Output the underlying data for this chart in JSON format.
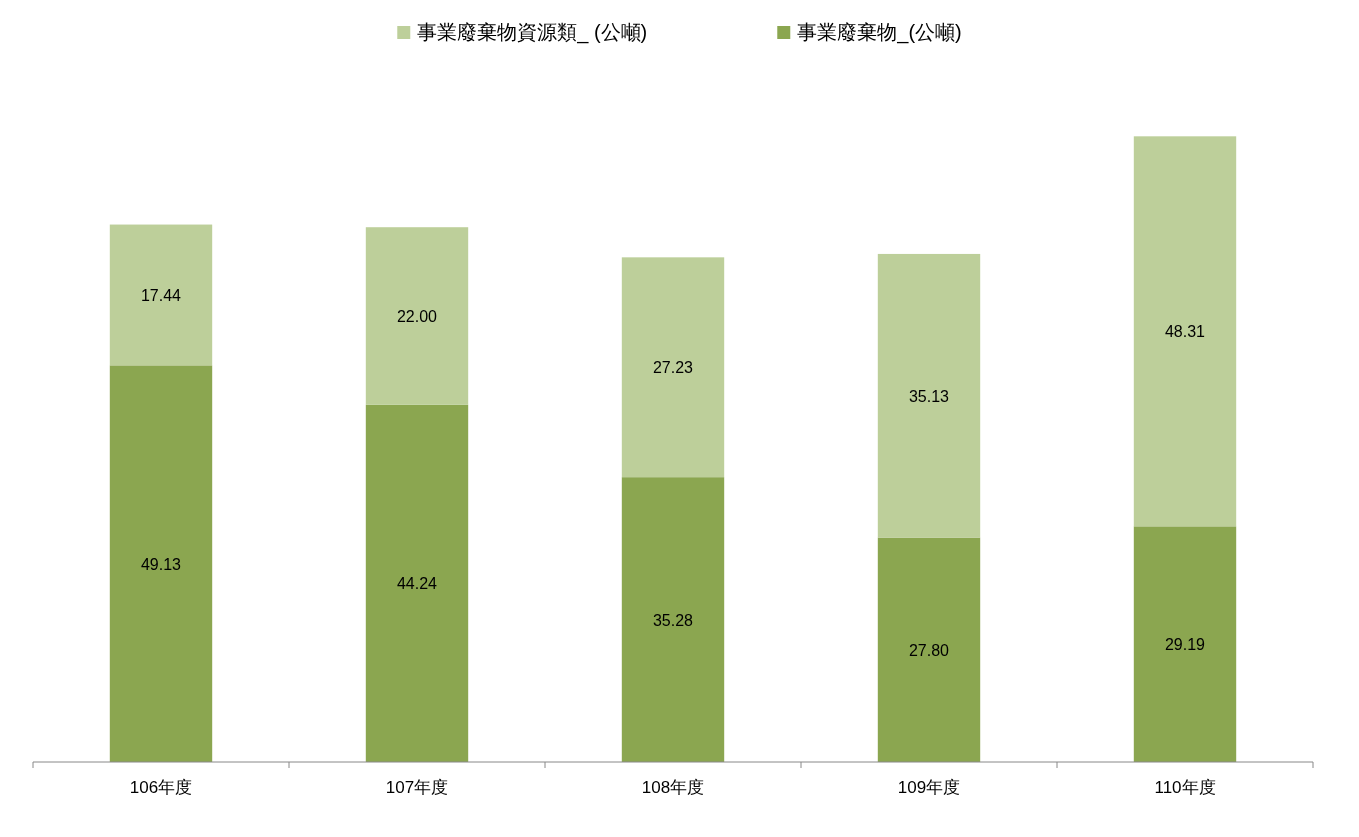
{
  "chart_data": {
    "type": "bar",
    "stacked": true,
    "legend": "top",
    "categories": [
      "106年度",
      "107年度",
      "108年度",
      "109年度",
      "110年度"
    ],
    "series": [
      {
        "name": "事業廢棄物_(公噸)",
        "color": "#8ba650",
        "values": [
          49.13,
          44.24,
          35.28,
          27.8,
          29.19
        ],
        "value_labels": [
          "49.13",
          "44.24",
          "35.28",
          "27.80",
          "29.19"
        ]
      },
      {
        "name": "事業廢棄物資源類_ (公噸)",
        "color": "#bdcf9a",
        "values": [
          17.44,
          22.0,
          27.23,
          35.13,
          48.31
        ],
        "value_labels": [
          "17.44",
          "22.00",
          "27.23",
          "35.13",
          "48.31"
        ]
      }
    ]
  }
}
